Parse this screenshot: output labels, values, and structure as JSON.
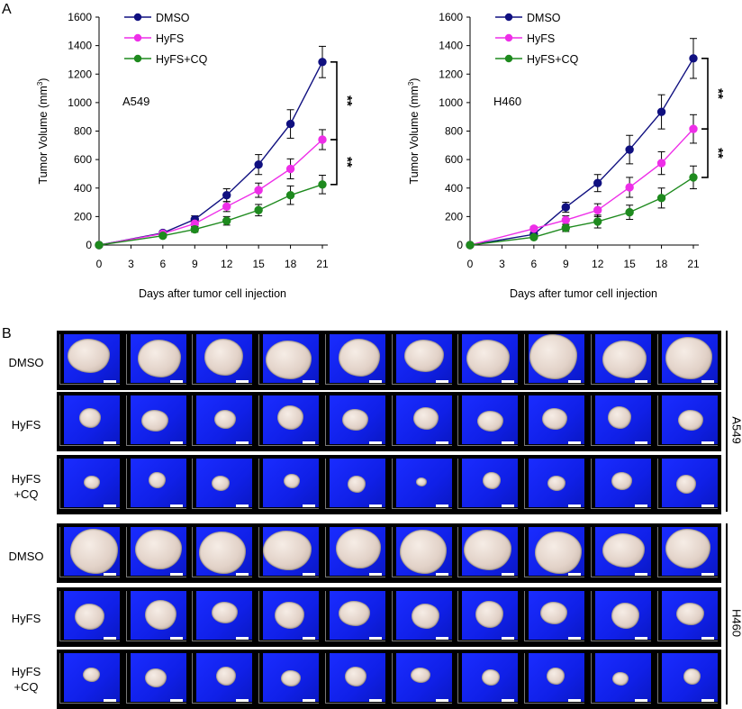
{
  "panel_a_label": "A",
  "panel_b_label": "B",
  "chart_data": [
    {
      "type": "line",
      "title": "",
      "annotation": "A549",
      "xlabel": "Days after tumor cell injection",
      "ylabel": "Tumor Volume (mm3)",
      "x": [
        0,
        6,
        9,
        12,
        15,
        18,
        21
      ],
      "xticks": [
        "0",
        "3",
        "6",
        "9",
        "12",
        "15",
        "18",
        "21"
      ],
      "xlim": [
        0,
        21
      ],
      "yticks": [
        "0",
        "200",
        "400",
        "600",
        "800",
        "1000",
        "1200",
        "1400",
        "1600"
      ],
      "ylim": [
        0,
        1600
      ],
      "series": [
        {
          "name": "DMSO",
          "color": "#101080",
          "values": [
            0,
            85,
            180,
            350,
            565,
            850,
            1285
          ],
          "errors": [
            0,
            15,
            25,
            45,
            70,
            100,
            110
          ]
        },
        {
          "name": "HyFS",
          "color": "#ee2ee8",
          "values": [
            0,
            80,
            150,
            270,
            385,
            535,
            740
          ],
          "errors": [
            0,
            12,
            20,
            35,
            50,
            70,
            70
          ]
        },
        {
          "name": "HyFS+CQ",
          "color": "#1e8a1e",
          "values": [
            0,
            65,
            110,
            170,
            245,
            350,
            425
          ],
          "errors": [
            0,
            10,
            20,
            30,
            40,
            65,
            65
          ]
        }
      ],
      "significance": [
        "**",
        "**"
      ],
      "legend": "top-left"
    },
    {
      "type": "line",
      "title": "",
      "annotation": "H460",
      "xlabel": "Days after tumor cell injection",
      "ylabel": "Tumor Volume (mm3)",
      "x": [
        0,
        6,
        9,
        12,
        15,
        18,
        21
      ],
      "xticks": [
        "0",
        "3",
        "6",
        "9",
        "12",
        "15",
        "18",
        "21"
      ],
      "xlim": [
        0,
        21
      ],
      "yticks": [
        "0",
        "200",
        "400",
        "600",
        "800",
        "1000",
        "1200",
        "1400",
        "1600"
      ],
      "ylim": [
        0,
        1600
      ],
      "series": [
        {
          "name": "DMSO",
          "color": "#101080",
          "values": [
            0,
            75,
            265,
            435,
            670,
            935,
            1310
          ],
          "errors": [
            0,
            15,
            35,
            60,
            100,
            120,
            140
          ]
        },
        {
          "name": "HyFS",
          "color": "#ee2ee8",
          "values": [
            0,
            115,
            175,
            245,
            405,
            575,
            815
          ],
          "errors": [
            0,
            15,
            30,
            45,
            70,
            80,
            100
          ]
        },
        {
          "name": "HyFS+CQ",
          "color": "#1e8a1e",
          "values": [
            0,
            55,
            120,
            165,
            230,
            330,
            475
          ],
          "errors": [
            0,
            10,
            25,
            45,
            50,
            70,
            80
          ]
        }
      ],
      "significance": [
        "**",
        "**"
      ],
      "legend": "top-left"
    }
  ],
  "panel_b": {
    "groups": [
      {
        "name": "A549",
        "rows": [
          {
            "label_1": "DMSO",
            "label_2": ""
          },
          {
            "label_1": "HyFS",
            "label_2": ""
          },
          {
            "label_1": "HyFS",
            "label_2": "+CQ"
          }
        ]
      },
      {
        "name": "H460",
        "rows": [
          {
            "label_1": "DMSO",
            "label_2": ""
          },
          {
            "label_1": "HyFS",
            "label_2": ""
          },
          {
            "label_1": "HyFS",
            "label_2": "+CQ"
          }
        ]
      }
    ],
    "tumor_sizes": [
      [
        0.78,
        0.8,
        0.72,
        0.85,
        0.76,
        0.74,
        0.8,
        0.88,
        0.82,
        0.86
      ],
      [
        0.4,
        0.5,
        0.4,
        0.48,
        0.48,
        0.46,
        0.48,
        0.46,
        0.44,
        0.46
      ],
      [
        0.3,
        0.32,
        0.34,
        0.3,
        0.34,
        0.2,
        0.34,
        0.34,
        0.38,
        0.36
      ],
      [
        0.88,
        0.86,
        0.86,
        0.9,
        0.84,
        0.86,
        0.88,
        0.86,
        0.78,
        0.84
      ],
      [
        0.55,
        0.58,
        0.48,
        0.55,
        0.58,
        0.52,
        0.52,
        0.5,
        0.52,
        0.52
      ],
      [
        0.32,
        0.4,
        0.36,
        0.36,
        0.4,
        0.36,
        0.34,
        0.34,
        0.3,
        0.32
      ]
    ]
  }
}
